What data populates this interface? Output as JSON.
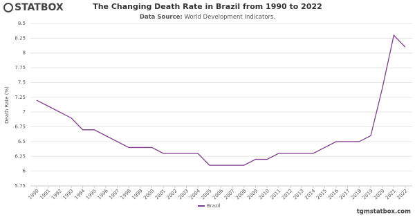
{
  "logo": "STATBOX",
  "footer": "tgmstatbox.com",
  "chart_data": {
    "type": "line",
    "title": "The Changing Death Rate in Brazil from 1990 to 2022",
    "subtitle_label": "Data Source:",
    "subtitle": "World Development Indicators.",
    "y_label": "Death Rate (%)",
    "categories": [
      "1990",
      "1991",
      "1992",
      "1993",
      "1994",
      "1995",
      "1996",
      "1997",
      "1998",
      "1999",
      "2000",
      "2001",
      "2002",
      "2003",
      "2004",
      "2005",
      "2006",
      "2007",
      "2008",
      "2009",
      "2010",
      "2011",
      "2012",
      "2013",
      "2014",
      "2015",
      "2016",
      "2017",
      "2018",
      "2019",
      "2020",
      "2021",
      "2022"
    ],
    "series": [
      {
        "name": "Brazil",
        "color": "#7d3c8c",
        "values": [
          7.2,
          7.1,
          7.0,
          6.9,
          6.7,
          6.7,
          6.6,
          6.5,
          6.4,
          6.4,
          6.4,
          6.3,
          6.3,
          6.3,
          6.3,
          6.1,
          6.1,
          6.1,
          6.1,
          6.2,
          6.2,
          6.3,
          6.3,
          6.3,
          6.3,
          6.4,
          6.5,
          6.5,
          6.5,
          6.6,
          7.4,
          8.3,
          8.1
        ]
      }
    ],
    "ylim": [
      5.75,
      8.5
    ],
    "yticks": [
      5.75,
      6,
      6.25,
      6.5,
      6.75,
      7,
      7.25,
      7.5,
      7.75,
      8,
      8.25,
      8.5
    ],
    "grid": true,
    "legend": "bottom"
  }
}
